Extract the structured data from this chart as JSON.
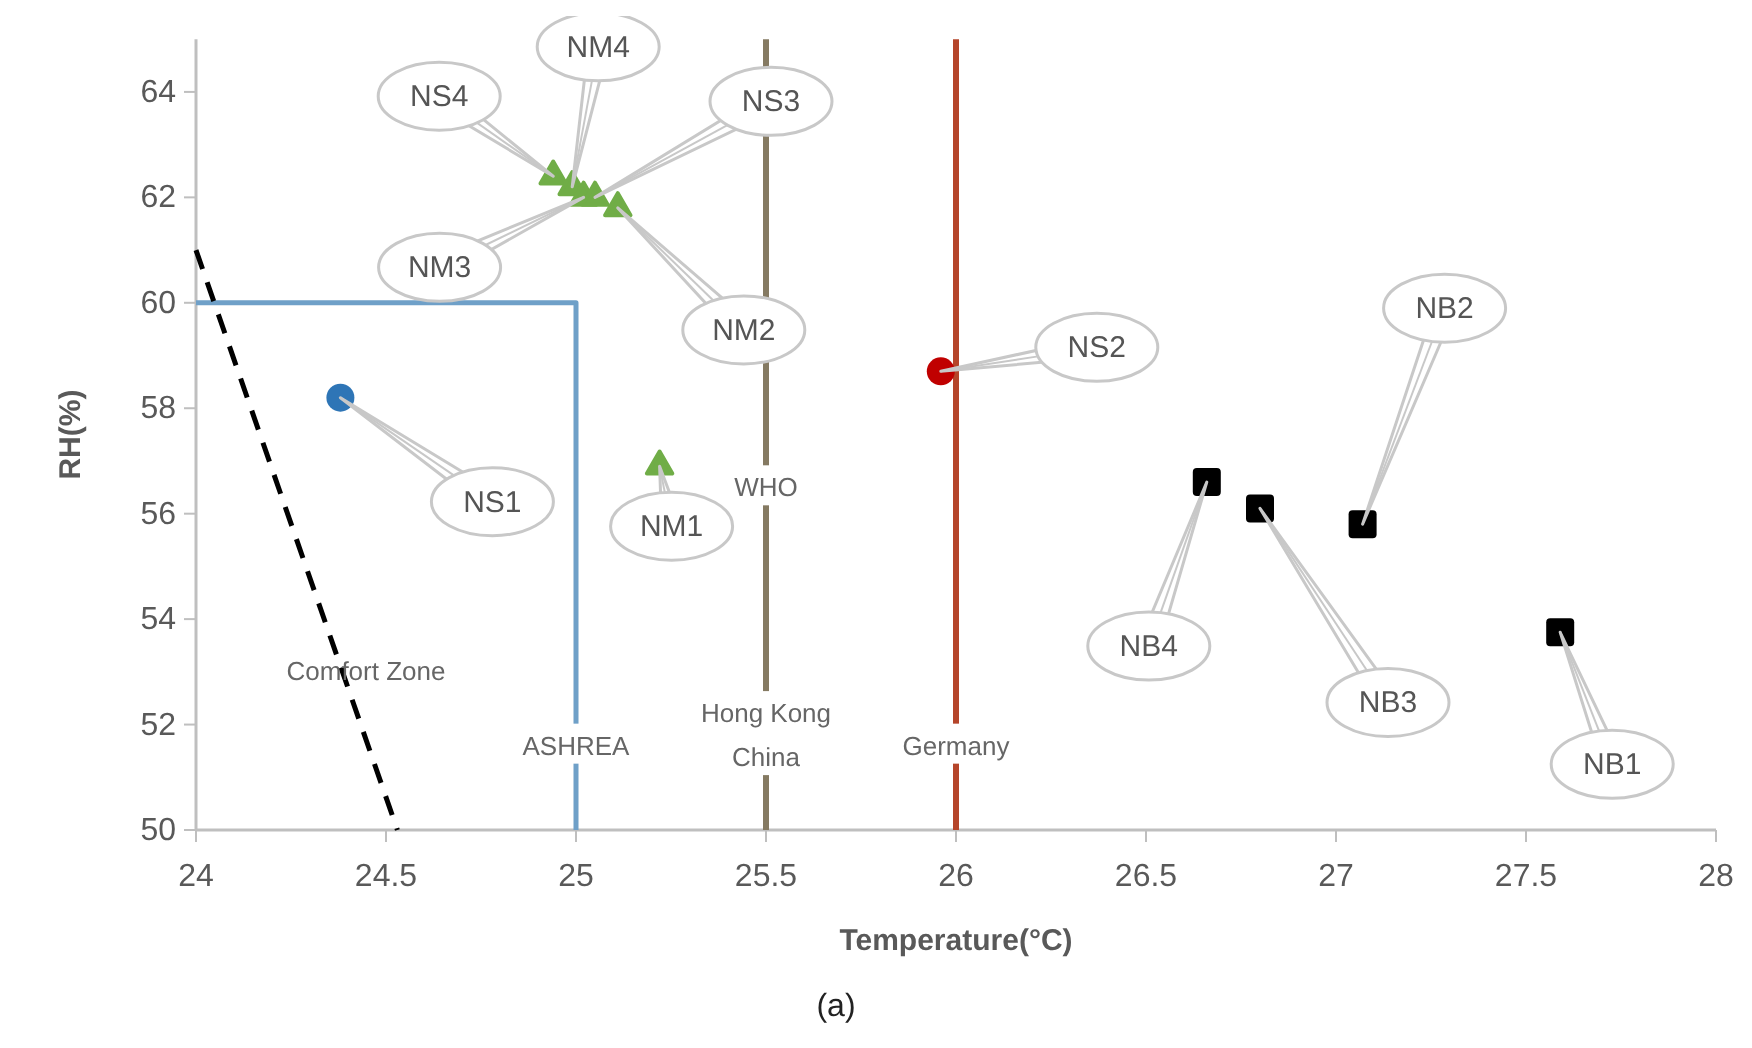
{
  "chart_data": {
    "type": "scatter",
    "xlabel": "Temperature(°C)",
    "ylabel": "RH(%)",
    "xlim": [
      24,
      28
    ],
    "xticks": [
      24,
      24.5,
      25,
      25.5,
      26,
      26.5,
      27,
      27.5,
      28
    ],
    "ylim": [
      50,
      65
    ],
    "yticks": [
      50,
      52,
      54,
      56,
      58,
      60,
      62,
      64
    ],
    "grid": false,
    "series": [
      {
        "color": "#2e75b6",
        "marker": "circle",
        "x": [
          24.38
        ],
        "values": [
          58.2
        ]
      },
      {
        "color": "#c00000",
        "marker": "circle",
        "x": [
          25.96
        ],
        "values": [
          58.7
        ]
      },
      {
        "color": "#70ad47",
        "marker": "triangle",
        "x": [
          25.22,
          24.94,
          24.99,
          25.02,
          25.11,
          25.05
        ],
        "values": [
          56.9,
          62.4,
          62.2,
          62.0,
          61.8,
          62.0
        ]
      },
      {
        "color": "#000000",
        "marker": "square",
        "x": [
          26.66,
          26.8,
          27.07,
          27.59
        ],
        "values": [
          56.6,
          56.1,
          55.8,
          53.75
        ]
      },
      {
        "type": "line",
        "color": "#6fa0c8",
        "line_style": "solid",
        "marker": "none",
        "x": [
          24,
          25,
          25
        ],
        "values": [
          60,
          60,
          50
        ]
      },
      {
        "type": "line",
        "color": "#000000",
        "line_style": "dashed",
        "marker": "none",
        "x": [
          24,
          24.53
        ],
        "values": [
          61,
          50
        ]
      }
    ],
    "ref_lines": [
      {
        "axis": "x",
        "value": 25.5,
        "color": "#857a62"
      },
      {
        "axis": "x",
        "value": 26,
        "color": "#b5452a"
      }
    ],
    "annotations": [
      {
        "text": "WHO",
        "x": 25.5,
        "y": 56.5
      },
      {
        "text": "Hong Kong China",
        "x": 25.5,
        "y": 51.8
      },
      {
        "text": "Germany",
        "x": 26,
        "y": 51.6
      },
      {
        "text": "ASHREA",
        "x": 25,
        "y": 51.6
      },
      "Comfort Zone",
      "(a)",
      {
        "text": "NS1",
        "x": 24.38,
        "y": 58.2
      },
      {
        "text": "NS2",
        "x": 25.96,
        "y": 58.7
      },
      {
        "text": "NM1",
        "x": 25.22,
        "y": 56.9
      },
      {
        "text": "NS4",
        "x": 24.94,
        "y": 62.4
      },
      {
        "text": "NM4",
        "x": 24.99,
        "y": 62.2
      },
      {
        "text": "NS3",
        "x": 25.05,
        "y": 62.0
      },
      {
        "text": "NM3",
        "x": 25.02,
        "y": 62.0
      },
      {
        "text": "NM2",
        "x": 25.11,
        "y": 61.8
      },
      {
        "text": "NB4",
        "x": 26.66,
        "y": 56.6
      },
      {
        "text": "NB3",
        "x": 26.8,
        "y": 56.1
      },
      {
        "text": "NB2",
        "x": 27.07,
        "y": 55.8
      },
      {
        "text": "NB1",
        "x": 27.59,
        "y": 53.75
      }
    ]
  }
}
